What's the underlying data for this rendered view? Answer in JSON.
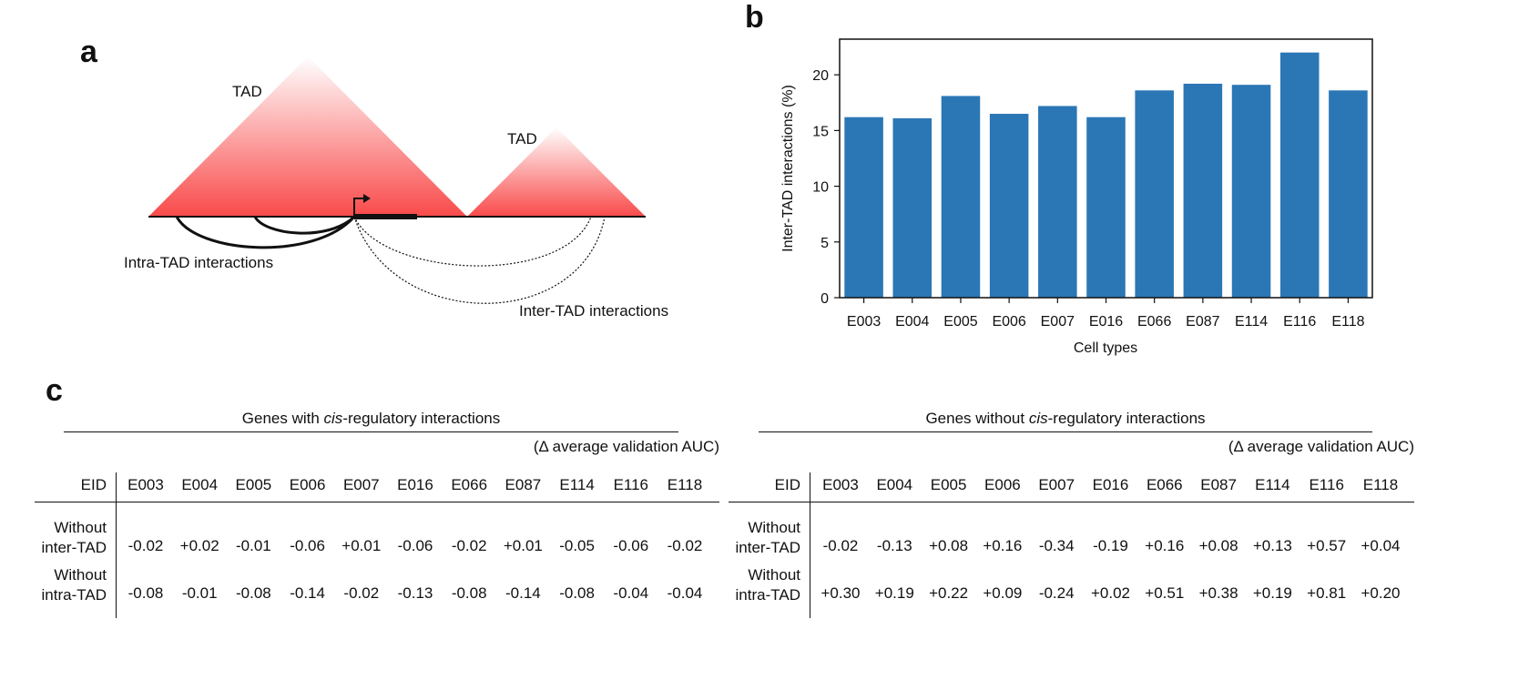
{
  "panel_a": {
    "letter": "a",
    "tad_left_label": "TAD",
    "tad_right_label": "TAD",
    "intra_label": "Intra-TAD interactions",
    "inter_label": "Inter-TAD interactions",
    "colors": {
      "tad_base": "#f94a4a",
      "tad_top": "#ffffff"
    }
  },
  "panel_b": {
    "letter": "b"
  },
  "chart_data": {
    "type": "bar",
    "categories": [
      "E003",
      "E004",
      "E005",
      "E006",
      "E007",
      "E016",
      "E066",
      "E087",
      "E114",
      "E116",
      "E118"
    ],
    "values": [
      16.2,
      16.1,
      18.1,
      16.5,
      17.2,
      16.2,
      18.6,
      19.2,
      19.1,
      22.0,
      18.6
    ],
    "xlabel": "Cell types",
    "ylabel": "Inter-TAD interactions (%)",
    "ylim": [
      0,
      23.2
    ],
    "yticks": [
      0,
      5,
      10,
      15,
      20
    ],
    "bar_color": "#2b77b5",
    "grid": false
  },
  "panel_c": {
    "letter": "c",
    "subtitle": "(Δ average validation AUC)",
    "eid_label": "EID",
    "columns": [
      "E003",
      "E004",
      "E005",
      "E006",
      "E007",
      "E016",
      "E066",
      "E087",
      "E114",
      "E116",
      "E118"
    ],
    "tables": [
      {
        "title_pre": "Genes with ",
        "title_em": "cis",
        "title_post": "-regulatory interactions",
        "rows": [
          {
            "label_1": "Without",
            "label_2": "inter-TAD",
            "values": [
              "-0.02",
              "+0.02",
              "-0.01",
              "-0.06",
              "+0.01",
              "-0.06",
              "-0.02",
              "+0.01",
              "-0.05",
              "-0.06",
              "-0.02"
            ]
          },
          {
            "label_1": "Without",
            "label_2": "intra-TAD",
            "values": [
              "-0.08",
              "-0.01",
              "-0.08",
              "-0.14",
              "-0.02",
              "-0.13",
              "-0.08",
              "-0.14",
              "-0.08",
              "-0.04",
              "-0.04"
            ]
          }
        ]
      },
      {
        "title_pre": "Genes without ",
        "title_em": "cis",
        "title_post": "-regulatory interactions",
        "rows": [
          {
            "label_1": "Without",
            "label_2": "inter-TAD",
            "values": [
              "-0.02",
              "-0.13",
              "+0.08",
              "+0.16",
              "-0.34",
              "-0.19",
              "+0.16",
              "+0.08",
              "+0.13",
              "+0.57",
              "+0.04"
            ]
          },
          {
            "label_1": "Without",
            "label_2": "intra-TAD",
            "values": [
              "+0.30",
              "+0.19",
              "+0.22",
              "+0.09",
              "-0.24",
              "+0.02",
              "+0.51",
              "+0.38",
              "+0.19",
              "+0.81",
              "+0.20"
            ]
          }
        ]
      }
    ]
  }
}
